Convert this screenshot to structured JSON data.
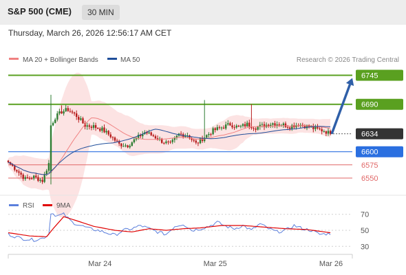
{
  "header": {
    "title": "S&P 500 (CME)",
    "timeframe": "30 MIN"
  },
  "datetime": "Thursday, March 26, 2026 12:56:17 AM CET",
  "legend": {
    "items": [
      {
        "label": "MA 20 + Bollinger Bands",
        "color": "#f08080"
      },
      {
        "label": "MA 50",
        "color": "#1f4e9a"
      }
    ],
    "copyright": "Research © 2026 Trading Central"
  },
  "rsi_legend": {
    "items": [
      {
        "label": "RSI",
        "color": "#5b7fdc"
      },
      {
        "label": "9MA",
        "color": "#e00000"
      }
    ]
  },
  "colors": {
    "resistance": "#5aa020",
    "support": "#e06666",
    "pivot": "#2b6fe0",
    "last": "#333333",
    "arrow": "#2f5fa8",
    "candle_up": "#2e7d32",
    "candle_down": "#b71c1c"
  },
  "chart_data": [
    {
      "type": "candlestick",
      "y_range": [
        6520,
        6760
      ],
      "x_labels": [
        "Mar 24",
        "Mar 25",
        "Mar 26"
      ],
      "levels": [
        {
          "value": 6745,
          "label": "6745",
          "kind": "resistance"
        },
        {
          "value": 6690,
          "label": "6690",
          "kind": "resistance"
        },
        {
          "value": 6634,
          "label": "6634",
          "kind": "last"
        },
        {
          "value": 6600,
          "label": "6600",
          "kind": "pivot"
        },
        {
          "value": 6575,
          "label": "6575",
          "kind": "support"
        },
        {
          "value": 6550,
          "label": "6550",
          "kind": "support"
        }
      ],
      "price_anchors": [
        [
          0,
          6580
        ],
        [
          4,
          6565
        ],
        [
          8,
          6548
        ],
        [
          12,
          6552
        ],
        [
          16,
          6545
        ],
        [
          19,
          6578
        ],
        [
          20,
          6650
        ],
        [
          22,
          6665
        ],
        [
          25,
          6676
        ],
        [
          28,
          6680
        ],
        [
          32,
          6668
        ],
        [
          36,
          6650
        ],
        [
          40,
          6648
        ],
        [
          44,
          6642
        ],
        [
          48,
          6630
        ],
        [
          52,
          6614
        ],
        [
          56,
          6612
        ],
        [
          60,
          6625
        ],
        [
          64,
          6637
        ],
        [
          68,
          6630
        ],
        [
          72,
          6620
        ],
        [
          76,
          6614
        ],
        [
          80,
          6633
        ],
        [
          84,
          6632
        ],
        [
          88,
          6615
        ],
        [
          92,
          6628
        ],
        [
          96,
          6640
        ],
        [
          100,
          6646
        ],
        [
          104,
          6652
        ],
        [
          108,
          6646
        ],
        [
          112,
          6652
        ],
        [
          116,
          6646
        ],
        [
          120,
          6650
        ],
        [
          124,
          6654
        ],
        [
          128,
          6652
        ],
        [
          132,
          6648
        ],
        [
          136,
          6652
        ],
        [
          140,
          6648
        ],
        [
          144,
          6643
        ],
        [
          148,
          6640
        ],
        [
          151,
          6634
        ]
      ],
      "projection": {
        "from": 6634,
        "to": 6745
      }
    },
    {
      "type": "line",
      "title": "RSI",
      "y_range": [
        20,
        80
      ],
      "y_ticks": [
        70,
        50,
        30
      ],
      "series": [
        {
          "name": "RSI",
          "anchors": [
            [
              0,
              45
            ],
            [
              6,
              40
            ],
            [
              12,
              38
            ],
            [
              16,
              40
            ],
            [
              19,
              45
            ],
            [
              20,
              72
            ],
            [
              23,
              68
            ],
            [
              26,
              70
            ],
            [
              30,
              60
            ],
            [
              34,
              56
            ],
            [
              38,
              52
            ],
            [
              42,
              50
            ],
            [
              46,
              47
            ],
            [
              50,
              44
            ],
            [
              54,
              50
            ],
            [
              58,
              52
            ],
            [
              62,
              56
            ],
            [
              66,
              52
            ],
            [
              70,
              48
            ],
            [
              74,
              45
            ],
            [
              78,
              55
            ],
            [
              82,
              58
            ],
            [
              86,
              50
            ],
            [
              90,
              52
            ],
            [
              94,
              55
            ],
            [
              98,
              60
            ],
            [
              102,
              55
            ],
            [
              106,
              52
            ],
            [
              110,
              56
            ],
            [
              114,
              50
            ],
            [
              118,
              58
            ],
            [
              122,
              52
            ],
            [
              126,
              48
            ],
            [
              130,
              50
            ],
            [
              134,
              56
            ],
            [
              138,
              52
            ],
            [
              142,
              50
            ],
            [
              146,
              45
            ],
            [
              151,
              46
            ]
          ]
        },
        {
          "name": "9MA",
          "anchors": [
            [
              0,
              47
            ],
            [
              10,
              43
            ],
            [
              18,
              42
            ],
            [
              21,
              52
            ],
            [
              26,
              67
            ],
            [
              32,
              62
            ],
            [
              40,
              55
            ],
            [
              50,
              50
            ],
            [
              58,
              48
            ],
            [
              66,
              52
            ],
            [
              74,
              50
            ],
            [
              82,
              52
            ],
            [
              90,
              53
            ],
            [
              100,
              56
            ],
            [
              110,
              56
            ],
            [
              120,
              54
            ],
            [
              130,
              52
            ],
            [
              140,
              51
            ],
            [
              151,
              47
            ]
          ]
        }
      ]
    }
  ]
}
